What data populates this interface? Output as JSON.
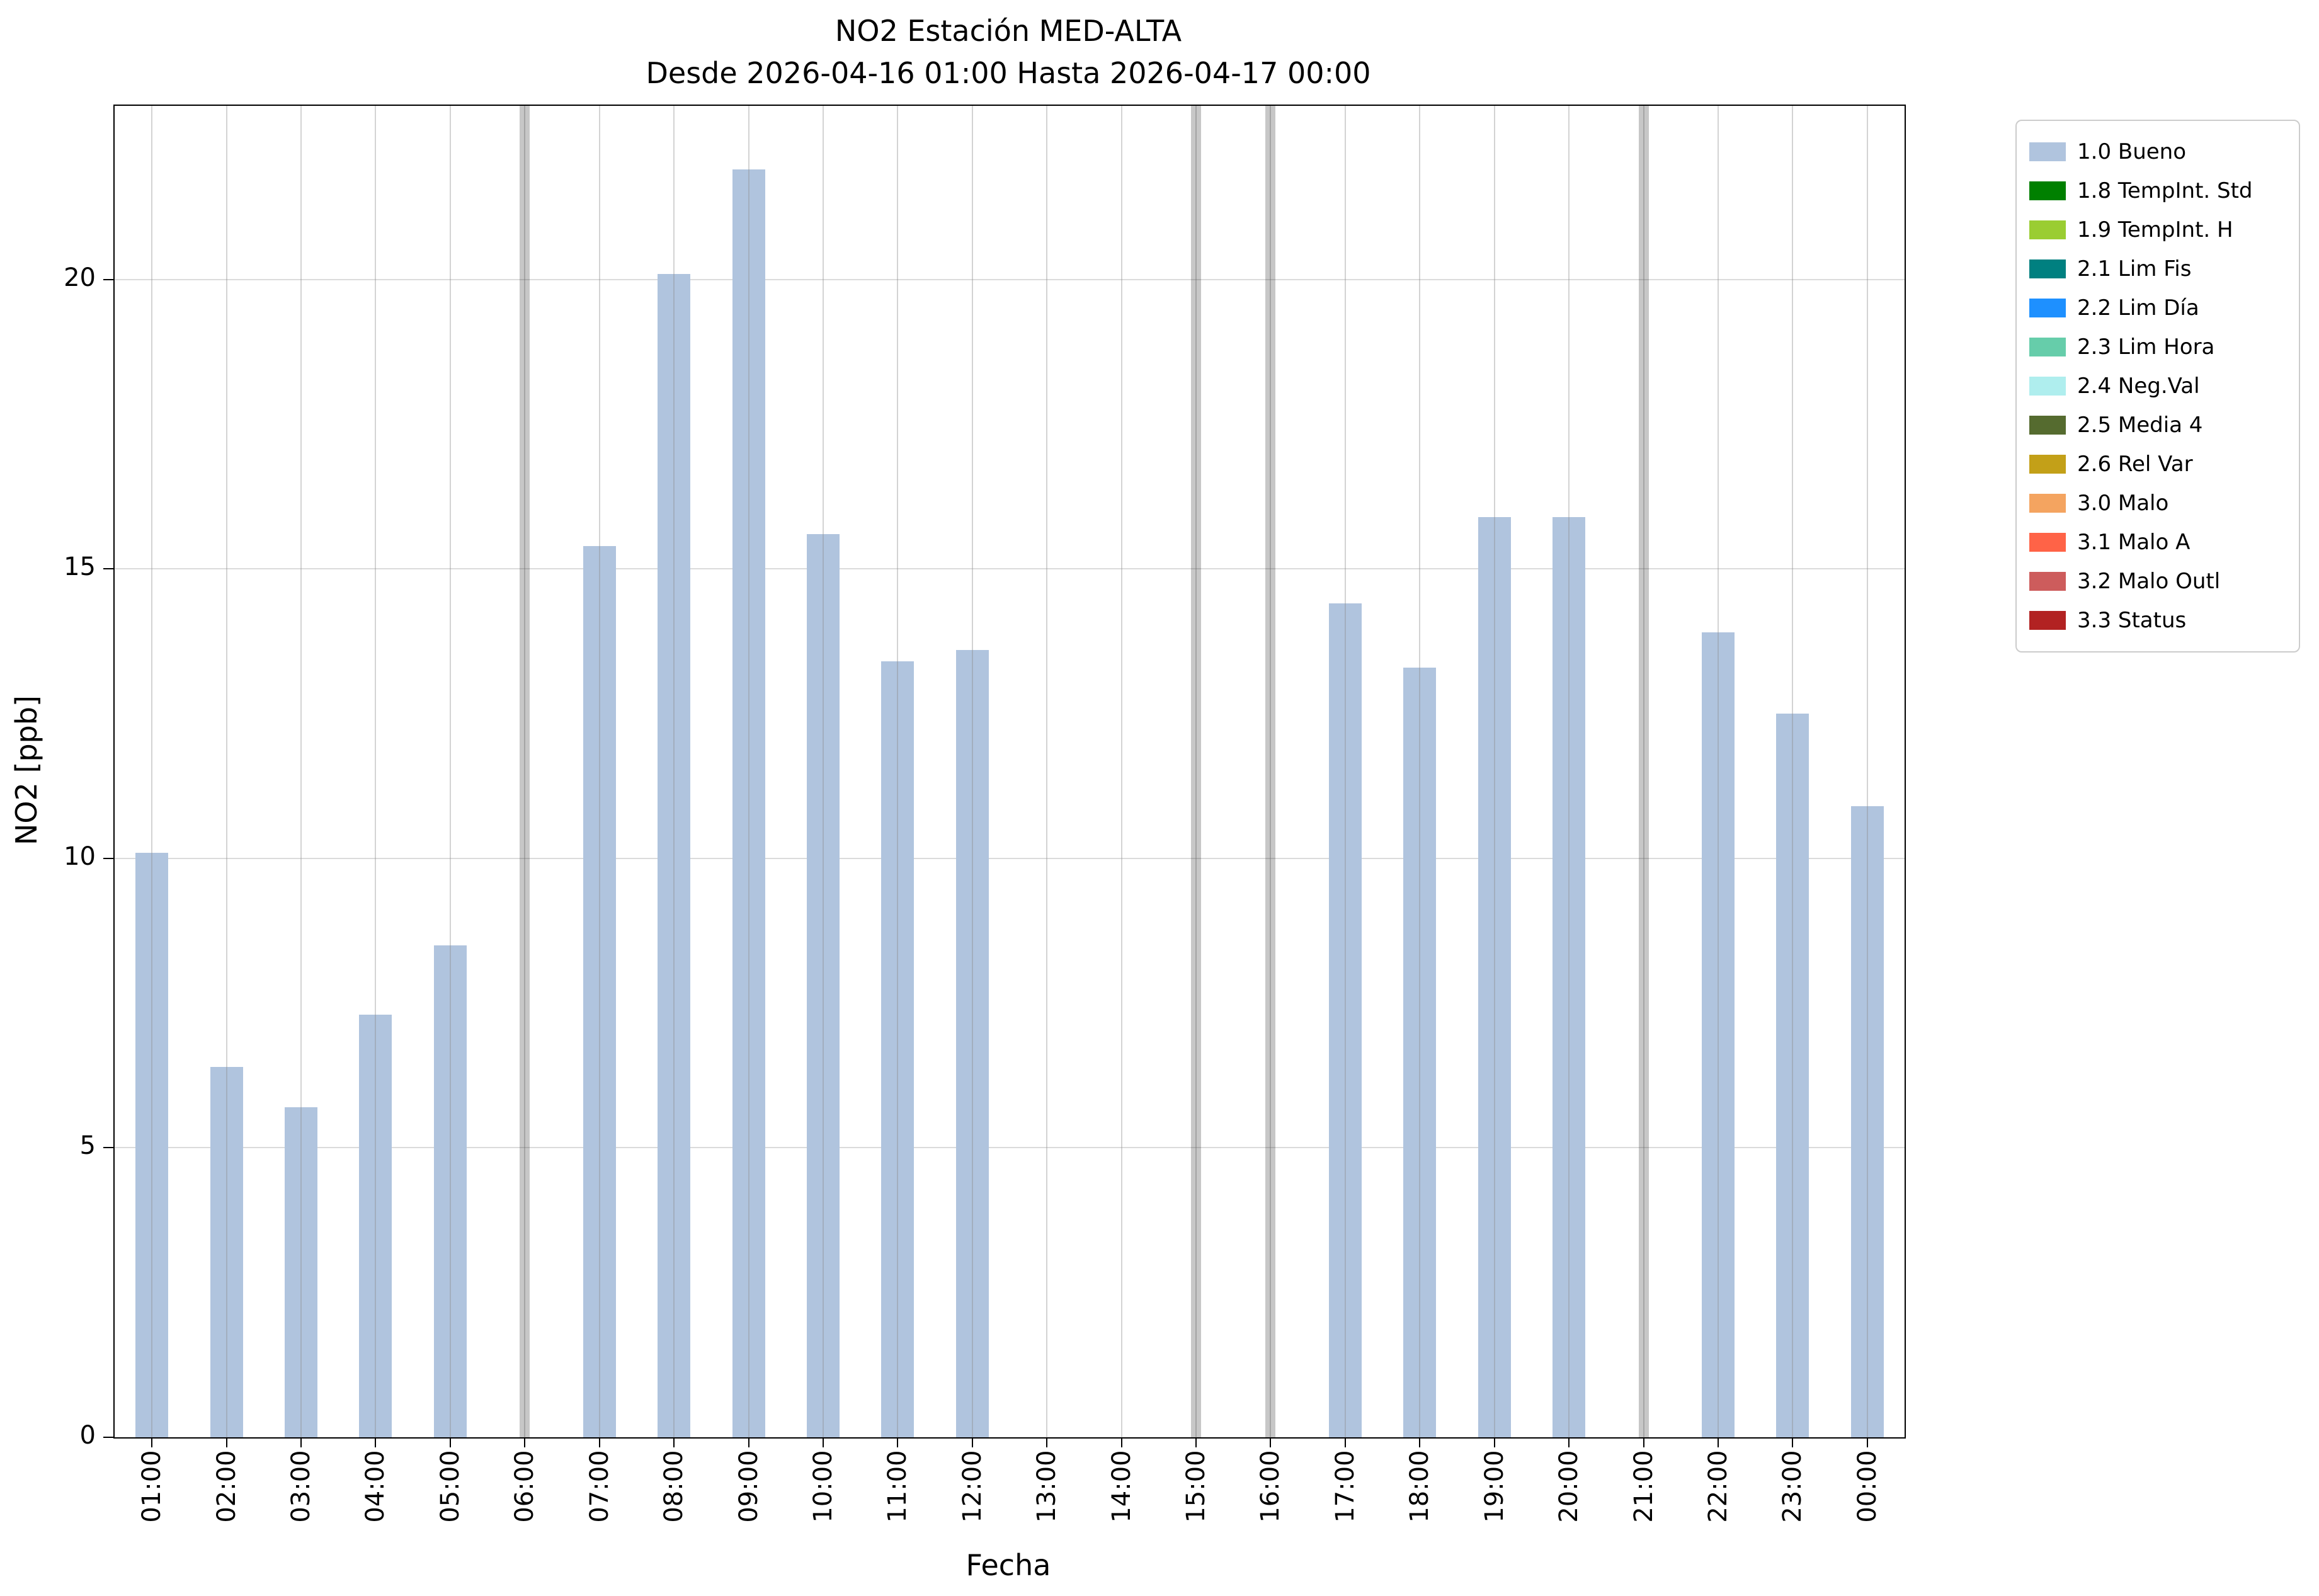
{
  "chart_data": {
    "type": "bar",
    "title": "NO2 Estación MED-ALTA",
    "subtitle": "Desde 2026-04-16 01:00 Hasta 2026-04-17 00:00",
    "xlabel": "Fecha",
    "ylabel": "NO2 [ppb]",
    "ylim": [
      0,
      23
    ],
    "yticks": [
      0,
      5,
      10,
      15,
      20
    ],
    "grid": true,
    "bar_color": "#b0c4de",
    "categories": [
      "01:00",
      "02:00",
      "03:00",
      "04:00",
      "05:00",
      "06:00",
      "07:00",
      "08:00",
      "09:00",
      "10:00",
      "11:00",
      "12:00",
      "13:00",
      "14:00",
      "15:00",
      "16:00",
      "17:00",
      "18:00",
      "19:00",
      "20:00",
      "21:00",
      "22:00",
      "23:00",
      "00:00"
    ],
    "values": [
      10.1,
      6.4,
      5.7,
      7.3,
      8.5,
      null,
      15.4,
      20.1,
      21.9,
      15.6,
      13.4,
      13.6,
      null,
      null,
      null,
      null,
      14.4,
      13.3,
      15.9,
      15.9,
      null,
      13.9,
      12.5,
      10.9
    ],
    "missing_band_hours": [
      "06:00",
      "15:00",
      "16:00",
      "21:00"
    ],
    "legend_position": "outside-top-right",
    "legend": [
      {
        "label": "1.0 Bueno",
        "color": "#b0c4de"
      },
      {
        "label": "1.8 TempInt. Std",
        "color": "#008000"
      },
      {
        "label": "1.9 TempInt. H",
        "color": "#9acd32"
      },
      {
        "label": "2.1 Lim Fis",
        "color": "#008080"
      },
      {
        "label": "2.2 Lim Día",
        "color": "#1e90ff"
      },
      {
        "label": "2.3 Lim Hora",
        "color": "#66cdaa"
      },
      {
        "label": "2.4 Neg.Val",
        "color": "#afeeee"
      },
      {
        "label": "2.5 Media 4",
        "color": "#556b2f"
      },
      {
        "label": "2.6 Rel Var",
        "color": "#c3a018"
      },
      {
        "label": "3.0 Malo",
        "color": "#f4a460"
      },
      {
        "label": "3.1 Malo A",
        "color": "#ff6347"
      },
      {
        "label": "3.2 Malo Outl",
        "color": "#cd5c5c"
      },
      {
        "label": "3.3 Status",
        "color": "#b22222"
      }
    ]
  }
}
